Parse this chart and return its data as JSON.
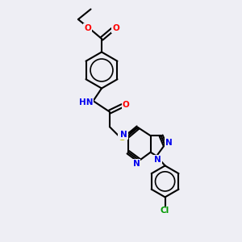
{
  "bg_color": "#eeeef4",
  "bond_color": "#000000",
  "bond_width": 1.5,
  "atoms": {
    "N_blue": "#0000ee",
    "O_red": "#ff0000",
    "S_yellow": "#bbbb00",
    "Cl_green": "#009900",
    "N_teal": "#0055aa",
    "C_black": "#000000"
  },
  "layout": {
    "xlim": [
      0,
      10
    ],
    "ylim": [
      0,
      10
    ]
  }
}
